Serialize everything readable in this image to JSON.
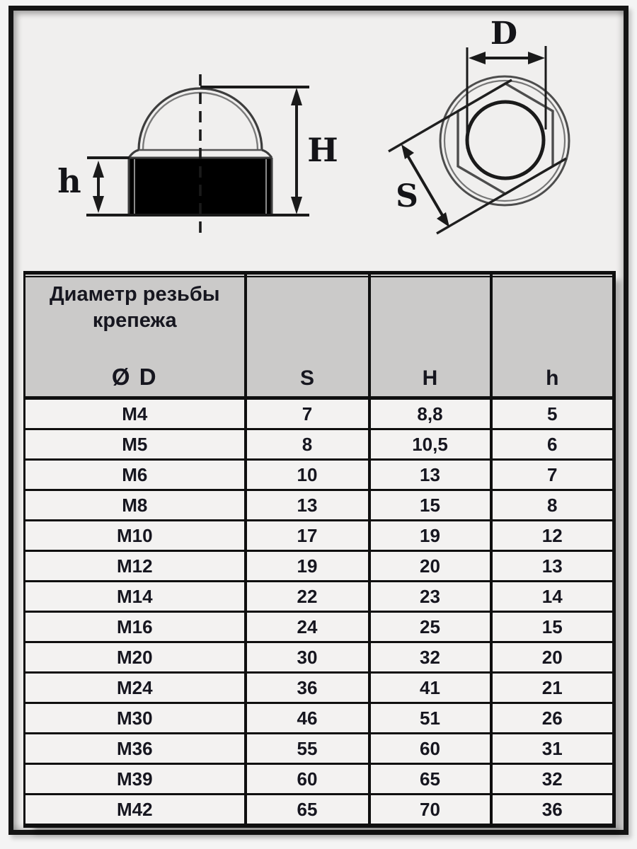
{
  "figure": {
    "side_view": {
      "label_h": "h",
      "label_H": "H"
    },
    "top_view": {
      "label_D": "D",
      "label_S": "S"
    }
  },
  "table": {
    "header": {
      "diameter_line1": "Диаметр резьбы",
      "diameter_line2": "крепежа",
      "diameter_symbol": "Ø D",
      "s": "S",
      "h_total": "H",
      "h_base": "h"
    },
    "rows": [
      [
        "M4",
        "7",
        "8,8",
        "5"
      ],
      [
        "M5",
        "8",
        "10,5",
        "6"
      ],
      [
        "M6",
        "10",
        "13",
        "7"
      ],
      [
        "M8",
        "13",
        "15",
        "8"
      ],
      [
        "M10",
        "17",
        "19",
        "12"
      ],
      [
        "M12",
        "19",
        "20",
        "13"
      ],
      [
        "M14",
        "22",
        "23",
        "14"
      ],
      [
        "M16",
        "24",
        "25",
        "15"
      ],
      [
        "M20",
        "30",
        "32",
        "20"
      ],
      [
        "M24",
        "36",
        "41",
        "21"
      ],
      [
        "M30",
        "46",
        "51",
        "26"
      ],
      [
        "M36",
        "55",
        "60",
        "31"
      ],
      [
        "M39",
        "60",
        "65",
        "32"
      ],
      [
        "M42",
        "65",
        "70",
        "36"
      ]
    ]
  },
  "colors": {
    "frame": "#141414",
    "header_bg": "#cbcac9",
    "row_bg": "#f3f2f1",
    "text": "#16161f",
    "line": "#1a1a1a"
  }
}
